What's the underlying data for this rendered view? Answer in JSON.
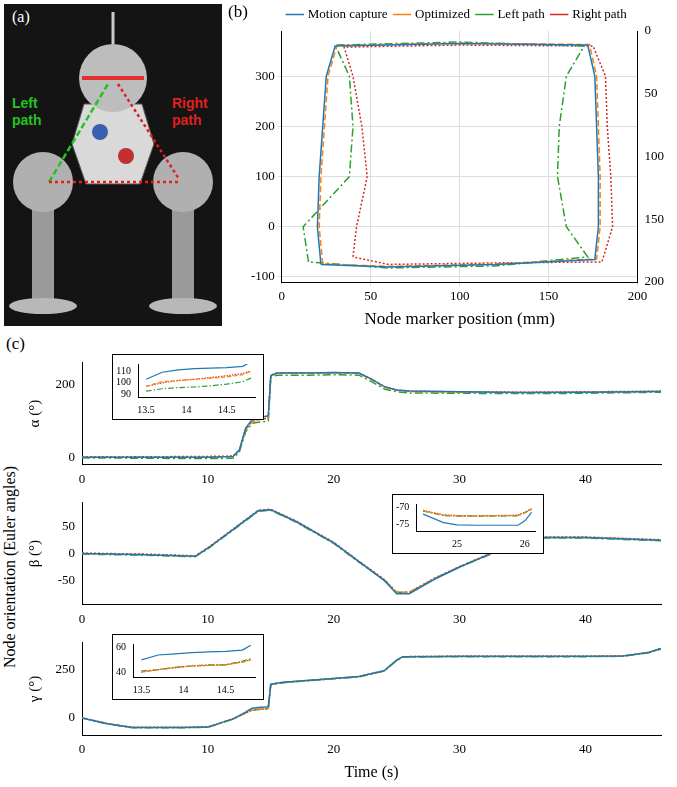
{
  "photo": {
    "panel": "(a)",
    "left_label": "Left path",
    "right_label": "Right path"
  },
  "chart_data": [
    {
      "type": "line",
      "panel": "(b)",
      "xlabel": "Node marker position (mm)",
      "grid": true,
      "legend": "top",
      "xlim": [
        0,
        200
      ],
      "xticks": [
        0,
        50,
        100,
        150,
        200
      ],
      "ylim": [
        -110,
        390
      ],
      "yticks": [
        -100,
        0,
        100,
        200,
        300
      ],
      "y2lim": [
        0,
        200
      ],
      "y2ticks": [
        0,
        50,
        100,
        150,
        200
      ],
      "series": [
        {
          "name": "Motion capture",
          "color": "#1f77b4",
          "line_style": "solid",
          "x": [
            22,
            20,
            21,
            23,
            25,
            30,
            100,
            172,
            176,
            177,
            178,
            178,
            176,
            120,
            60,
            22
          ],
          "values": [
            -75,
            0,
            100,
            200,
            300,
            360,
            365,
            362,
            300,
            200,
            100,
            0,
            -65,
            -75,
            -80,
            -75
          ]
        },
        {
          "name": "Optimized",
          "color": "#ff7f0e",
          "line_style": "dashed",
          "x": [
            23,
            21,
            22,
            24,
            26,
            31,
            100,
            173,
            177,
            178,
            179,
            179,
            177,
            120,
            60,
            23
          ],
          "values": [
            -74,
            0,
            100,
            200,
            300,
            361,
            366,
            363,
            300,
            200,
            100,
            0,
            -64,
            -74,
            -79,
            -74
          ]
        },
        {
          "name": "Left path",
          "color": "#2ca02c",
          "line_style": "dashdot",
          "x": [
            15,
            12,
            38,
            40,
            38,
            30,
            100,
            170,
            160,
            156,
            155,
            160,
            172,
            120,
            60,
            15
          ],
          "values": [
            -70,
            0,
            100,
            200,
            300,
            362,
            368,
            360,
            300,
            200,
            100,
            0,
            -60,
            -78,
            -82,
            -70
          ]
        },
        {
          "name": "Right path",
          "color": "#d62728",
          "line_style": "dotted",
          "x": [
            40,
            42,
            48,
            45,
            40,
            35,
            100,
            175,
            182,
            183,
            185,
            186,
            180,
            120,
            60,
            40
          ],
          "values": [
            -60,
            0,
            100,
            200,
            300,
            358,
            362,
            360,
            300,
            200,
            100,
            0,
            -70,
            -72,
            -75,
            -60
          ]
        }
      ]
    },
    {
      "type": "line",
      "panel": "(c)",
      "group_ylabel": "Node orientation (Euler angles)",
      "ylabel": "α (°)",
      "grid": false,
      "xlim": [
        0,
        46
      ],
      "xticks": [
        0,
        10,
        20,
        30,
        40
      ],
      "ylim": [
        -20,
        260
      ],
      "yticks": [
        0,
        200
      ],
      "x": [
        0,
        5,
        10,
        12,
        12.5,
        13,
        13.5,
        14,
        14.5,
        14.8,
        15,
        15.5,
        18,
        20,
        22,
        23,
        24,
        25,
        26,
        30,
        35,
        40,
        46
      ],
      "series": [
        {
          "name": "Motion capture",
          "color": "#1f77b4",
          "line_style": "solid",
          "values": [
            0,
            0,
            0,
            2,
            20,
            80,
            103,
            110,
            112,
            114,
            225,
            232,
            232,
            233,
            232,
            215,
            195,
            185,
            182,
            180,
            178,
            179,
            181
          ]
        },
        {
          "name": "Optimized",
          "color": "#ff7f0e",
          "line_style": "dashed",
          "values": [
            0,
            0,
            0,
            2,
            18,
            75,
            97,
            103,
            105,
            108,
            224,
            231,
            231,
            232,
            231,
            214,
            193,
            184,
            181,
            179,
            178,
            179,
            181
          ]
        },
        {
          "name": "Left path",
          "color": "#2ca02c",
          "line_style": "dashdot",
          "values": [
            -2,
            -3,
            -4,
            -3,
            14,
            70,
            93,
            96,
            98,
            100,
            220,
            226,
            226,
            227,
            226,
            208,
            188,
            180,
            177,
            176,
            175,
            176,
            179
          ]
        },
        {
          "name": "Right path",
          "color": "#d62728",
          "line_style": "dotted",
          "values": [
            1,
            1,
            2,
            3,
            19,
            76,
            98,
            104,
            106,
            109,
            226,
            232,
            232,
            233,
            232,
            215,
            194,
            185,
            182,
            180,
            179,
            180,
            182
          ]
        }
      ],
      "inset": {
        "xlim": [
          13.4,
          14.85
        ],
        "xticks": [
          13.5,
          14,
          14.5
        ],
        "ylim": [
          88,
          116
        ],
        "yticks": [
          90,
          100,
          110
        ],
        "x": [
          13.5,
          13.7,
          13.9,
          14.1,
          14.3,
          14.5,
          14.7,
          14.8
        ],
        "series": [
          {
            "name": "Motion capture",
            "color": "#1f77b4",
            "line_style": "solid",
            "values": [
              103,
              109,
              111,
              112,
              112.5,
              113,
              114,
              118
            ]
          },
          {
            "name": "Optimized",
            "color": "#ff7f0e",
            "line_style": "dashed",
            "values": [
              97,
              101,
              102,
              103,
              104,
              105,
              107,
              110
            ]
          },
          {
            "name": "Left path",
            "color": "#2ca02c",
            "line_style": "dashdot",
            "values": [
              93,
              95,
              96,
              96.5,
              97.5,
              99,
              101,
              104
            ]
          },
          {
            "name": "Right path",
            "color": "#d62728",
            "line_style": "dotted",
            "values": [
              97,
              100,
              102,
              103,
              104.5,
              106,
              108,
              110
            ]
          }
        ]
      }
    },
    {
      "type": "line",
      "ylabel": "β (°)",
      "grid": false,
      "xlim": [
        0,
        46
      ],
      "xticks": [
        0,
        10,
        20,
        30,
        40
      ],
      "ylim": [
        -95,
        95
      ],
      "yticks": [
        -50,
        0,
        50
      ],
      "x": [
        0,
        5,
        9,
        10,
        12,
        14,
        15,
        17,
        20,
        22,
        24,
        25,
        26,
        28,
        30,
        33,
        36,
        40,
        46
      ],
      "series": [
        {
          "name": "Motion capture",
          "color": "#1f77b4",
          "line_style": "solid",
          "values": [
            0,
            -2,
            -5,
            10,
            45,
            80,
            82,
            60,
            20,
            -15,
            -50,
            -75,
            -75,
            -48,
            -25,
            5,
            30,
            30,
            25
          ]
        },
        {
          "name": "Optimized",
          "color": "#ff7f0e",
          "line_style": "dashed",
          "values": [
            0,
            -2,
            -5,
            10,
            45,
            80,
            82,
            60,
            20,
            -15,
            -49,
            -72.5,
            -72.5,
            -47,
            -25,
            5,
            30,
            30,
            25
          ]
        },
        {
          "name": "Left path",
          "color": "#2ca02c",
          "line_style": "dashdot",
          "values": [
            -1,
            -3,
            -6,
            9,
            44,
            79,
            81,
            59,
            19,
            -16,
            -49,
            -72.5,
            -72.4,
            -47,
            -25,
            4,
            29,
            29,
            24
          ]
        },
        {
          "name": "Right path",
          "color": "#d62728",
          "line_style": "dotted",
          "values": [
            1,
            -1,
            -4,
            11,
            46,
            81,
            83,
            61,
            21,
            -14,
            -48,
            -72.6,
            -72.5,
            -46,
            -24,
            6,
            31,
            31,
            26
          ]
        }
      ],
      "inset": {
        "xlim": [
          24.4,
          26.15
        ],
        "xticks": [
          25,
          26
        ],
        "ylim": [
          -77,
          -69
        ],
        "yticks": [
          -75,
          -70
        ],
        "x": [
          24.5,
          24.8,
          25,
          25.3,
          25.6,
          25.9,
          26,
          26.1
        ],
        "series": [
          {
            "name": "Motion capture",
            "color": "#1f77b4",
            "line_style": "solid",
            "values": [
              -72,
              -74.5,
              -75.2,
              -75.3,
              -75.3,
              -75.3,
              -74,
              -71.5
            ]
          },
          {
            "name": "Optimized",
            "color": "#ff7f0e",
            "line_style": "dashed",
            "values": [
              -71,
              -72.3,
              -72.5,
              -72.6,
              -72.5,
              -72.4,
              -71.5,
              -70.5
            ]
          },
          {
            "name": "Left path",
            "color": "#2ca02c",
            "line_style": "dashdot",
            "values": [
              -71.1,
              -72.4,
              -72.6,
              -72.6,
              -72.6,
              -72.5,
              -71.6,
              -70.6
            ]
          },
          {
            "name": "Right path",
            "color": "#d62728",
            "line_style": "dotted",
            "values": [
              -70.9,
              -72.2,
              -72.4,
              -72.5,
              -72.4,
              -72.3,
              -71.4,
              -70.4
            ]
          }
        ]
      }
    },
    {
      "type": "line",
      "ylabel": "γ (°)",
      "xlabel": "Time (s)",
      "grid": false,
      "xlim": [
        0,
        46
      ],
      "xticks": [
        0,
        10,
        20,
        30,
        40
      ],
      "ylim": [
        -90,
        390
      ],
      "yticks": [
        0,
        250
      ],
      "x": [
        0,
        2,
        4,
        8,
        10,
        12,
        13,
        13.5,
        14,
        14.5,
        14.8,
        15,
        16,
        20,
        22,
        24,
        25,
        25.5,
        30,
        40,
        43,
        45,
        46
      ],
      "series": [
        {
          "name": "Motion capture",
          "color": "#1f77b4",
          "line_style": "solid",
          "values": [
            0,
            -30,
            -50,
            -50,
            -48,
            -5,
            30,
            50,
            54,
            56,
            58,
            175,
            185,
            205,
            215,
            245,
            300,
            318,
            320,
            320,
            322,
            340,
            360
          ]
        },
        {
          "name": "Optimized",
          "color": "#ff7f0e",
          "line_style": "dashed",
          "values": [
            0,
            -30,
            -50,
            -50,
            -48,
            -6,
            25,
            40,
            44,
            46,
            48,
            174,
            184,
            204,
            214,
            244,
            299,
            317,
            319,
            319,
            321,
            339,
            359
          ]
        },
        {
          "name": "Left path",
          "color": "#2ca02c",
          "line_style": "dashdot",
          "values": [
            -1,
            -31,
            -51,
            -51,
            -49,
            -7,
            26,
            41,
            44,
            46,
            49,
            173,
            183,
            203,
            213,
            243,
            298,
            316,
            318,
            318,
            320,
            338,
            358
          ]
        },
        {
          "name": "Right path",
          "color": "#d62728",
          "line_style": "dotted",
          "values": [
            1,
            -29,
            -49,
            -49,
            -47,
            -5,
            25,
            40,
            43.5,
            46,
            48.5,
            175,
            185,
            205,
            215,
            245,
            300,
            318,
            320,
            320,
            322,
            340,
            360
          ]
        }
      ],
      "inset": {
        "xlim": [
          13.4,
          14.85
        ],
        "xticks": [
          13.5,
          14,
          14.5
        ],
        "ylim": [
          36,
          63
        ],
        "yticks": [
          40,
          60
        ],
        "x": [
          13.5,
          13.7,
          13.9,
          14.1,
          14.3,
          14.5,
          14.7,
          14.8
        ],
        "series": [
          {
            "name": "Motion capture",
            "color": "#1f77b4",
            "line_style": "solid",
            "values": [
              50,
              54,
              55,
              56,
              56.5,
              57,
              58,
              62
            ]
          },
          {
            "name": "Optimized",
            "color": "#ff7f0e",
            "line_style": "dashed",
            "values": [
              40,
              42,
              44,
              45,
              45.5,
              46,
              48,
              50
            ]
          },
          {
            "name": "Left path",
            "color": "#2ca02c",
            "line_style": "dashdot",
            "values": [
              41,
              42,
              44,
              45,
              46,
              46,
              49,
              51
            ]
          },
          {
            "name": "Right path",
            "color": "#d62728",
            "line_style": "dotted",
            "values": [
              40,
              42,
              43.5,
              45,
              45.5,
              46,
              48.5,
              50
            ]
          }
        ]
      }
    }
  ]
}
